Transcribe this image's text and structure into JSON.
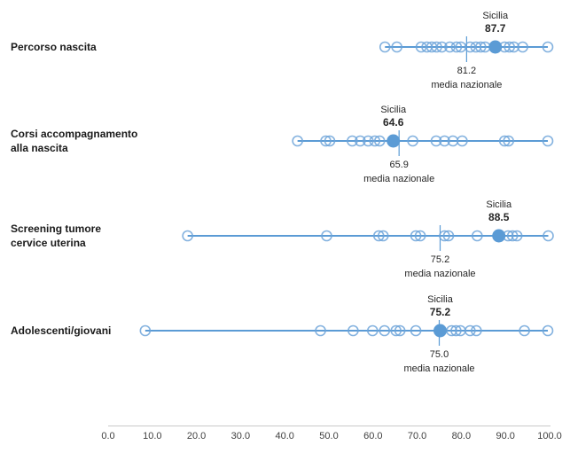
{
  "chart_data": {
    "type": "scatter",
    "title": "",
    "xlabel": "",
    "ylabel": "",
    "x_axis": {
      "min": 0,
      "max": 100,
      "ticks": [
        "0.0",
        "10.0",
        "20.0",
        "30.0",
        "40.0",
        "50.0",
        "60.0",
        "70.0",
        "80.0",
        "90.0",
        "100.0"
      ]
    },
    "legend": "none",
    "marks_note": "open circles = single regions, filled circle = Sicilia, vertical tick = national mean",
    "rows": [
      {
        "label": "Percorso nascita",
        "sicilia": {
          "name": "Sicilia",
          "value": 87.7,
          "value_label": "87.7"
        },
        "national_mean": {
          "value": 81.2,
          "value_label": "81.2",
          "caption": "media nazionale"
        },
        "region_values": [
          62.7,
          65.4,
          70.9,
          72.2,
          73.3,
          74.4,
          75.6,
          77.4,
          78.9,
          79.9,
          82.0,
          83.3,
          84.4,
          85.4,
          89.8,
          90.9,
          91.9,
          93.9,
          99.6
        ]
      },
      {
        "label": "Corsi accompagnamento\nalla nascita",
        "sicilia": {
          "name": "Sicilia",
          "value": 64.6,
          "value_label": "64.6"
        },
        "national_mean": {
          "value": 65.9,
          "value_label": "65.9",
          "caption": "media nazionale"
        },
        "region_values": [
          42.9,
          49.3,
          50.2,
          55.3,
          57.1,
          58.9,
          60.4,
          61.5,
          69.0,
          74.3,
          76.2,
          78.1,
          80.2,
          89.8,
          90.7,
          99.6
        ]
      },
      {
        "label": "Screening tumore\ncervice uterina",
        "sicilia": {
          "name": "Sicilia",
          "value": 88.5,
          "value_label": "88.5"
        },
        "national_mean": {
          "value": 75.2,
          "value_label": "75.2",
          "caption": "media nazionale"
        },
        "region_values": [
          18.0,
          49.5,
          61.3,
          62.3,
          69.7,
          70.7,
          76.2,
          77.1,
          83.6,
          90.6,
          91.6,
          92.6,
          99.7
        ]
      },
      {
        "label": "Adolescenti/giovani",
        "sicilia": {
          "name": "Sicilia",
          "value": 75.2,
          "value_label": "75.2"
        },
        "national_mean": {
          "value": 75.0,
          "value_label": "75.0",
          "caption": "media nazionale"
        },
        "region_values": [
          8.4,
          48.1,
          55.5,
          59.9,
          62.6,
          65.2,
          66.1,
          69.7,
          77.8,
          78.8,
          79.8,
          82.0,
          83.4,
          94.3,
          99.6
        ]
      }
    ],
    "colors": {
      "accent": "#5B9BD5",
      "open_circle": "#6FA4D9",
      "axis_line": "#C9C9C9",
      "axis_text": "#404040",
      "text": "#262626"
    }
  }
}
